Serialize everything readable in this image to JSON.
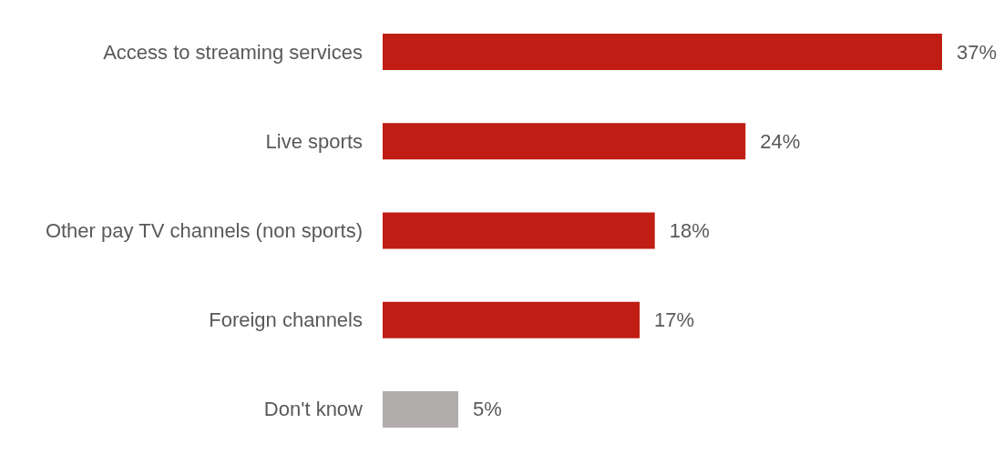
{
  "chart_data": {
    "type": "bar",
    "orientation": "horizontal",
    "categories": [
      "Access to streaming services",
      "Live sports",
      "Other pay TV channels (non sports)",
      "Foreign channels",
      "Don't know"
    ],
    "values": [
      37,
      24,
      18,
      17,
      5
    ],
    "value_labels": [
      "37%",
      "24%",
      "18%",
      "17%",
      "5%"
    ],
    "colors": [
      "#c01e14",
      "#c01e14",
      "#c01e14",
      "#c01e14",
      "#b0acab"
    ]
  }
}
